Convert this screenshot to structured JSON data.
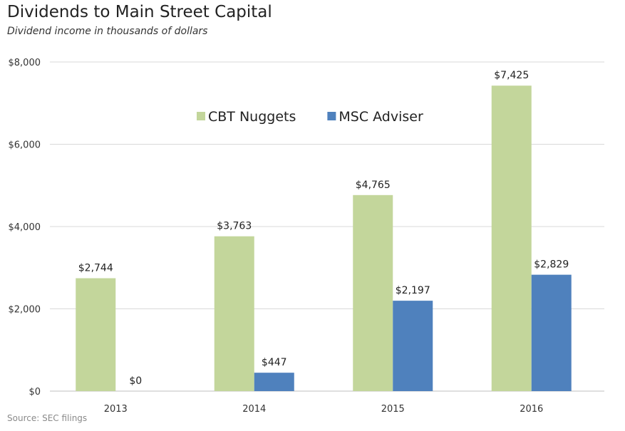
{
  "chart_data": {
    "type": "bar",
    "title": "Dividends to Main Street Capital",
    "subtitle": "Dividend income in thousands of dollars",
    "source": "Source: SEC filings",
    "categories": [
      "2013",
      "2014",
      "2015",
      "2016"
    ],
    "series": [
      {
        "name": "CBT Nuggets",
        "values": [
          2744,
          3763,
          4765,
          7425
        ],
        "labels": [
          "$2,744",
          "$3,763",
          "$4,765",
          "$7,425"
        ],
        "color": "#c3d69b"
      },
      {
        "name": "MSC Adviser",
        "values": [
          0,
          447,
          2197,
          2829
        ],
        "labels": [
          "$0",
          "$447",
          "$2,197",
          "$2,829"
        ],
        "color": "#4f81bd"
      }
    ],
    "ylim": [
      0,
      8000
    ],
    "yticks": [
      0,
      2000,
      4000,
      6000,
      8000
    ],
    "ytick_labels": [
      "$0",
      "$2,000",
      "$4,000",
      "$6,000",
      "$8,000"
    ],
    "grid": true,
    "legend": "top-center",
    "xlabel": "",
    "ylabel": ""
  }
}
